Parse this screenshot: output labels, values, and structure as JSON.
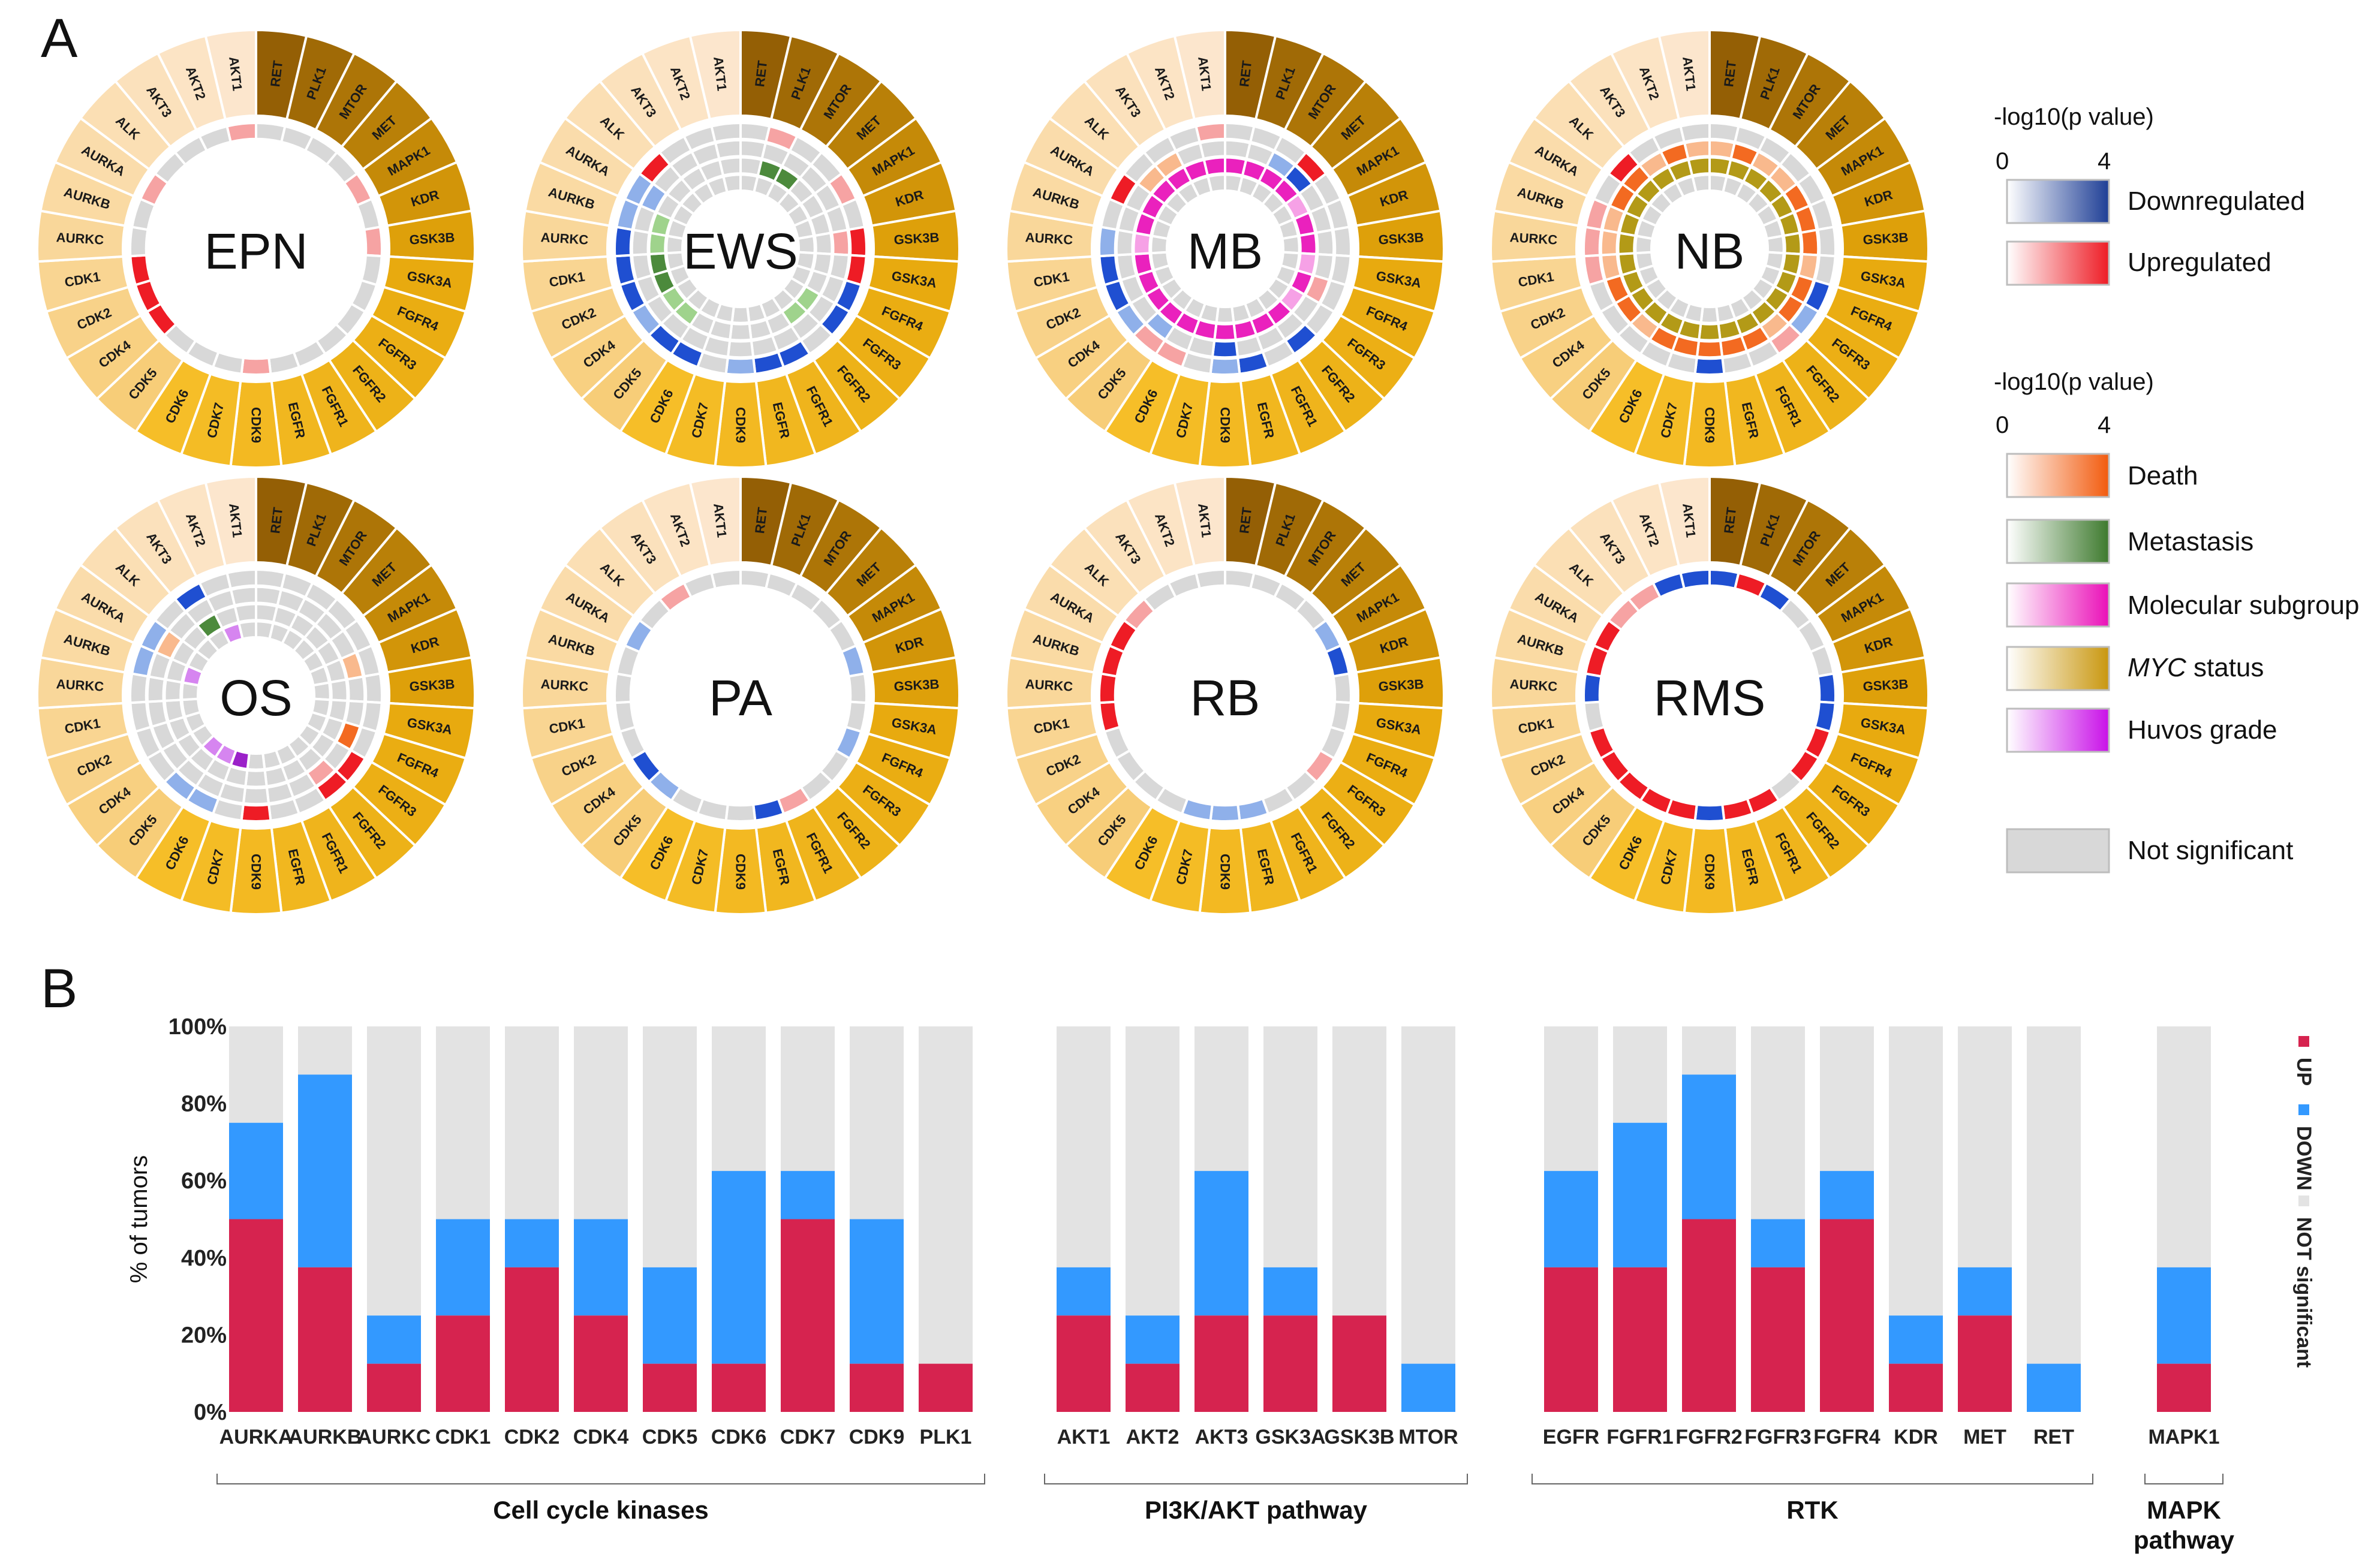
{
  "panel_labels": {
    "a": "A",
    "b": "B"
  },
  "colors": {
    "down": "#1f4fd1",
    "down_light": "#8fb0ea",
    "up": "#ee1c25",
    "up_light": "#f6a3a3",
    "death": "#f36a21",
    "metastasis": "#4c8a3c",
    "subgroup": "#ea21bd",
    "myc": "#b39a17",
    "huvos": "#9b21c9",
    "not_sig": "#d8d8d8",
    "bar_up": "#d6234f",
    "bar_down": "#3399ff",
    "bar_ns": "#e3e3e3"
  },
  "legend": {
    "title1": "-log10(p value)",
    "min1": "0",
    "max1": "4",
    "down": "Downregulated",
    "up": "Upregulated",
    "title2": "-log10(p value)",
    "min2": "0",
    "max2": "4",
    "death": "Death",
    "metastasis": "Metastasis",
    "subgroup": "Molecular subgroup",
    "myc_italic": "MYC",
    "myc_rest": " status",
    "huvos": "Huvos grade",
    "not_sig": "Not significant"
  },
  "chart_data": [
    {
      "type": "radial_heatmap",
      "genes": [
        "RET",
        "PLK1",
        "MTOR",
        "MET",
        "MAPK1",
        "KDR",
        "GSK3B",
        "GSK3A",
        "FGFR4",
        "FGFR3",
        "FGFR2",
        "FGFR1",
        "EGFR",
        "CDK9",
        "CDK7",
        "CDK6",
        "CDK5",
        "CDK4",
        "CDK2",
        "CDK1",
        "AURKC",
        "AURKB",
        "AURKA",
        "ALK",
        "AKT3",
        "AKT2",
        "AKT1"
      ],
      "panels": [
        {
          "name": "EPN",
          "rows": [
            [
              "n",
              "n",
              "n",
              "n",
              "u1",
              "n",
              "u1",
              "n",
              "n",
              "n",
              "n",
              "n",
              "n",
              "u1",
              "n",
              "n",
              "n",
              "u2",
              "u2",
              "u2",
              "n",
              "n",
              "u1",
              "n",
              "n",
              "n",
              "u1"
            ]
          ]
        },
        {
          "name": "EWS",
          "rows": [
            [
              "n",
              "u1",
              "n",
              "n",
              "u1",
              "n",
              "u2",
              "u2",
              "d2",
              "d2",
              "n",
              "d2",
              "d2",
              "d1",
              "n",
              "d2",
              "d2",
              "d1",
              "d2",
              "d2",
              "d2",
              "d1",
              "d1",
              "u2",
              "n",
              "n",
              "n"
            ],
            [
              "n",
              "n",
              "n",
              "n",
              "n",
              "n",
              "u1",
              "n",
              "n",
              "n",
              "n",
              "n",
              "n",
              "n",
              "n",
              "n",
              "n",
              "n",
              "n",
              "n",
              "n",
              "n",
              "d1",
              "n",
              "n",
              "n",
              "n"
            ],
            [
              "n",
              "m2",
              "m2",
              "n",
              "n",
              "n",
              "n",
              "n",
              "n",
              "m1",
              "m1",
              "n",
              "n",
              "n",
              "n",
              "n",
              "m1",
              "m1",
              "m2",
              "m2",
              "m1",
              "m1",
              "n",
              "n",
              "n",
              "n",
              "n"
            ],
            [
              "n",
              "n",
              "n",
              "n",
              "n",
              "n",
              "n",
              "n",
              "n",
              "n",
              "n",
              "n",
              "n",
              "n",
              "n",
              "n",
              "n",
              "n",
              "n",
              "n",
              "n",
              "n",
              "n",
              "n",
              "n",
              "n",
              "n"
            ]
          ]
        },
        {
          "name": "MB",
          "rows": [
            [
              "n",
              "n",
              "n",
              "u2",
              "n",
              "n",
              "n",
              "n",
              "n",
              "n",
              "d2",
              "n",
              "d2",
              "d1",
              "n",
              "u1",
              "u1",
              "d1",
              "d2",
              "d2",
              "d1",
              "n",
              "u2",
              "n",
              "n",
              "n",
              "u1"
            ],
            [
              "n",
              "n",
              "d1",
              "d2",
              "n",
              "n",
              "n",
              "n",
              "u1",
              "n",
              "n",
              "n",
              "n",
              "d2",
              "n",
              "n",
              "d1",
              "n",
              "n",
              "n",
              "n",
              "n",
              "n",
              "o1",
              "o1",
              "n",
              "n"
            ],
            [
              "s2",
              "s2",
              "s2",
              "s2",
              "s1",
              "s2",
              "s2",
              "s1",
              "s2",
              "s1",
              "s2",
              "s2",
              "s2",
              "s2",
              "s2",
              "s2",
              "s2",
              "s2",
              "s2",
              "s2",
              "s1",
              "s2",
              "s2",
              "s2",
              "s2",
              "s2",
              "s2"
            ],
            [
              "n",
              "n",
              "n",
              "n",
              "n",
              "n",
              "n",
              "n",
              "n",
              "n",
              "n",
              "n",
              "n",
              "n",
              "n",
              "n",
              "n",
              "n",
              "n",
              "n",
              "n",
              "n",
              "n",
              "n",
              "n",
              "n",
              "n"
            ]
          ]
        },
        {
          "name": "NB",
          "rows": [
            [
              "n",
              "n",
              "n",
              "n",
              "n",
              "n",
              "n",
              "n",
              "d2",
              "d1",
              "u1",
              "n",
              "n",
              "d2",
              "n",
              "n",
              "n",
              "n",
              "n",
              "u1",
              "u1",
              "u1",
              "n",
              "u2",
              "n",
              "n",
              "n"
            ],
            [
              "o1",
              "o2",
              "o1",
              "o1",
              "o2",
              "o2",
              "o2",
              "o1",
              "o2",
              "o2",
              "o1",
              "o2",
              "o2",
              "o2",
              "o2",
              "o2",
              "o1",
              "o2",
              "o2",
              "o1",
              "o1",
              "o1",
              "o2",
              "o2",
              "o1",
              "o2",
              "o1"
            ],
            [
              "y2",
              "y2",
              "y2",
              "y2",
              "y2",
              "y2",
              "y2",
              "y2",
              "y2",
              "y2",
              "y2",
              "y2",
              "y2",
              "y2",
              "y2",
              "y2",
              "y2",
              "y2",
              "y2",
              "y2",
              "y2",
              "y2",
              "y2",
              "y2",
              "y2",
              "y2",
              "y2"
            ],
            [
              "n",
              "n",
              "n",
              "n",
              "n",
              "n",
              "n",
              "n",
              "n",
              "n",
              "n",
              "n",
              "n",
              "n",
              "n",
              "n",
              "n",
              "n",
              "n",
              "n",
              "n",
              "n",
              "n",
              "n",
              "n",
              "n",
              "n"
            ]
          ]
        },
        {
          "name": "OS",
          "rows": [
            [
              "n",
              "n",
              "n",
              "n",
              "n",
              "n",
              "n",
              "n",
              "n",
              "u2",
              "u2",
              "n",
              "n",
              "u2",
              "n",
              "d1",
              "d1",
              "n",
              "n",
              "n",
              "n",
              "d1",
              "d1",
              "n",
              "d2",
              "n",
              "n"
            ],
            [
              "n",
              "n",
              "n",
              "n",
              "n",
              "o1",
              "n",
              "n",
              "o2",
              "n",
              "u1",
              "n",
              "n",
              "n",
              "n",
              "n",
              "n",
              "n",
              "n",
              "n",
              "n",
              "n",
              "o1",
              "n",
              "n",
              "n",
              "n"
            ],
            [
              "n",
              "n",
              "n",
              "n",
              "n",
              "n",
              "n",
              "n",
              "n",
              "n",
              "n",
              "n",
              "n",
              "n",
              "n",
              "n",
              "n",
              "n",
              "n",
              "n",
              "n",
              "n",
              "n",
              "n",
              "m2",
              "n",
              "n"
            ],
            [
              "n",
              "n",
              "n",
              "n",
              "n",
              "n",
              "n",
              "n",
              "n",
              "n",
              "n",
              "n",
              "n",
              "n",
              "h2",
              "h1",
              "h1",
              "n",
              "n",
              "n",
              "n",
              "h1",
              "n",
              "n",
              "n",
              "h1",
              "n"
            ]
          ]
        },
        {
          "name": "PA",
          "rows": [
            [
              "n",
              "n",
              "n",
              "n",
              "n",
              "d1",
              "n",
              "n",
              "d1",
              "n",
              "n",
              "u1",
              "d2",
              "n",
              "n",
              "n",
              "d1",
              "d2",
              "n",
              "n",
              "n",
              "n",
              "d1",
              "n",
              "u1",
              "n",
              "n"
            ]
          ]
        },
        {
          "name": "RB",
          "rows": [
            [
              "n",
              "n",
              "n",
              "n",
              "d1",
              "d2",
              "n",
              "n",
              "n",
              "u1",
              "n",
              "n",
              "d1",
              "d1",
              "d1",
              "n",
              "n",
              "n",
              "n",
              "u2",
              "u2",
              "u2",
              "u2",
              "u1",
              "n",
              "n",
              "n"
            ]
          ]
        },
        {
          "name": "RMS",
          "rows": [
            [
              "d2",
              "u2",
              "d2",
              "n",
              "n",
              "n",
              "d2",
              "d2",
              "u2",
              "u2",
              "n",
              "u2",
              "u2",
              "d2",
              "u2",
              "u2",
              "u2",
              "u2",
              "u2",
              "n",
              "d2",
              "u2",
              "u2",
              "u1",
              "u1",
              "d2",
              "d2"
            ]
          ]
        }
      ]
    },
    {
      "type": "bar",
      "stacked": true,
      "ylabel": "% of tumors",
      "yticks": [
        "0%",
        "20%",
        "40%",
        "60%",
        "80%",
        "100%"
      ],
      "ylim": [
        0,
        100
      ],
      "legend": [
        "UP",
        "DOWN",
        "NOT significant"
      ],
      "groups": [
        {
          "label": [
            "Cell cycle kinases"
          ],
          "categories": [
            "AURKA",
            "AURKB",
            "AURKC",
            "CDK1",
            "CDK2",
            "CDK4",
            "CDK5",
            "CDK6",
            "CDK7",
            "CDK9",
            "PLK1"
          ],
          "up": [
            50,
            37.5,
            12.5,
            25,
            37.5,
            25,
            12.5,
            12.5,
            50,
            12.5,
            12.5
          ],
          "down": [
            25,
            50,
            12.5,
            25,
            12.5,
            25,
            25,
            50,
            12.5,
            37.5,
            0
          ]
        },
        {
          "label": [
            "PI3K/AKT pathway"
          ],
          "categories": [
            "AKT1",
            "AKT2",
            "AKT3",
            "GSK3A",
            "GSK3B",
            "MTOR"
          ],
          "up": [
            25,
            12.5,
            25,
            25,
            25,
            0
          ],
          "down": [
            12.5,
            12.5,
            37.5,
            12.5,
            0,
            12.5
          ]
        },
        {
          "label": [
            "RTK"
          ],
          "categories": [
            "EGFR",
            "FGFR1",
            "FGFR2",
            "FGFR3",
            "FGFR4",
            "KDR",
            "MET",
            "RET"
          ],
          "up": [
            37.5,
            37.5,
            50,
            37.5,
            50,
            12.5,
            25,
            0
          ],
          "down": [
            25,
            37.5,
            37.5,
            12.5,
            12.5,
            12.5,
            12.5,
            12.5
          ]
        },
        {
          "label": [
            "MAPK",
            "pathway"
          ],
          "categories": [
            "MAPK1"
          ],
          "up": [
            12.5
          ],
          "down": [
            25
          ]
        }
      ]
    }
  ]
}
